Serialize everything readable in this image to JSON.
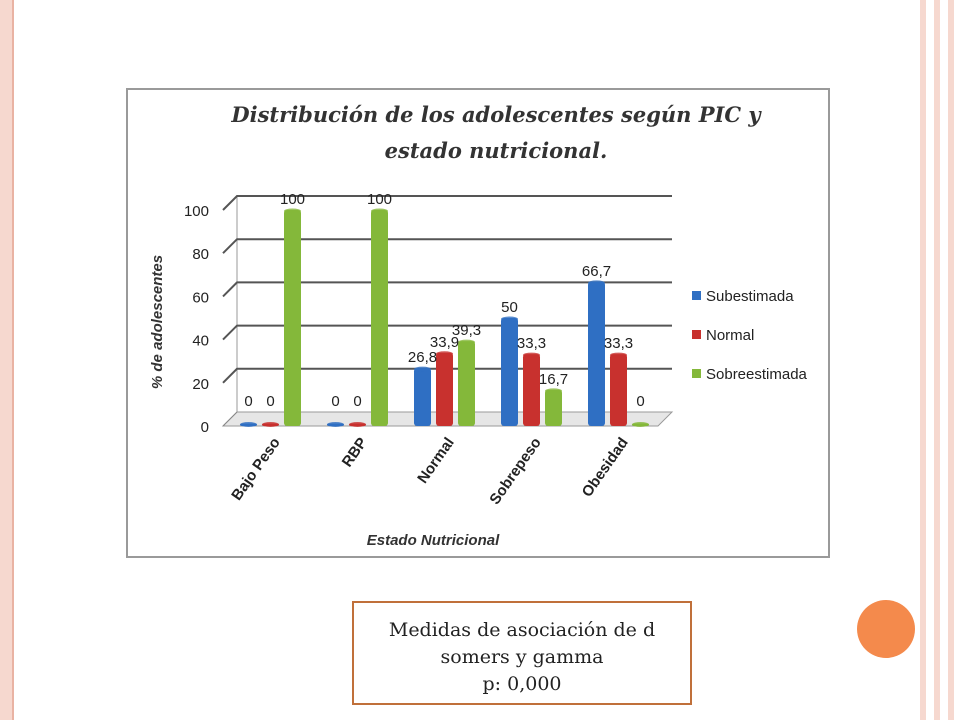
{
  "colors": {
    "border": "#f6d8cf",
    "accent": "#f48a4c",
    "subestimada": "#2f6fc3",
    "normal": "#c8312e",
    "sobreestimada": "#84b83a"
  },
  "chart_data": {
    "type": "bar",
    "title_line1": "Distribución de los adolescentes según PIC y",
    "title_line2": "estado nutricional.",
    "xlabel": "Estado Nutricional",
    "ylabel": "% de adolescentes",
    "ylim": [
      0,
      100
    ],
    "yticks": [
      "0",
      "20",
      "40",
      "60",
      "80",
      "100"
    ],
    "categories": [
      "Bajo Peso",
      "RBP",
      "Normal",
      "Sobrepeso",
      "Obesidad"
    ],
    "series": [
      {
        "name": "Subestimada",
        "values": [
          0,
          0,
          26.8,
          50,
          66.7
        ],
        "labels": [
          "0",
          "0",
          "26,8",
          "50",
          "66,7"
        ]
      },
      {
        "name": "Normal",
        "values": [
          0,
          0,
          33.9,
          33.3,
          33.3
        ],
        "labels": [
          "0",
          "0",
          "33,9",
          "33,3",
          "33,3"
        ]
      },
      {
        "name": "Sobreestimada",
        "values": [
          100,
          100,
          39.3,
          16.7,
          0
        ],
        "labels": [
          "100",
          "100",
          "39,3",
          "16,7",
          "0"
        ]
      }
    ],
    "legend_position": "right",
    "grid": true
  },
  "note": {
    "line1": "Medidas de asociación de d",
    "line2": "somers y gamma",
    "line3": "p: 0,000"
  }
}
